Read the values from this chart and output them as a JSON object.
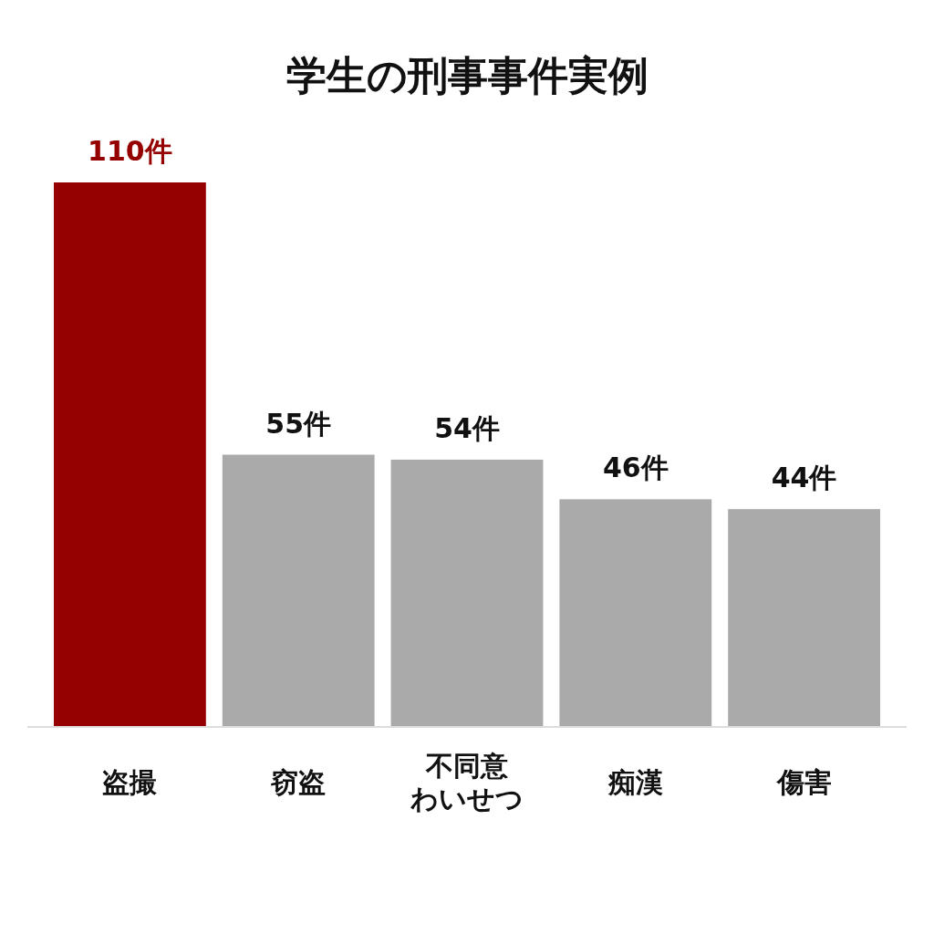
{
  "chart_data": {
    "type": "bar",
    "title": "学生の刑事事件実例",
    "categories": [
      "盗撮",
      "窃盗",
      "不同意わいせつ",
      "痴漢",
      "傷害"
    ],
    "values": [
      110,
      55,
      54,
      46,
      44
    ],
    "colors": [
      "#950000",
      "#aaaaaa",
      "#aaaaaa",
      "#aaaaaa",
      "#aaaaaa"
    ],
    "value_labels": [
      "110件",
      "55件",
      "54件",
      "46件",
      "44件"
    ]
  }
}
